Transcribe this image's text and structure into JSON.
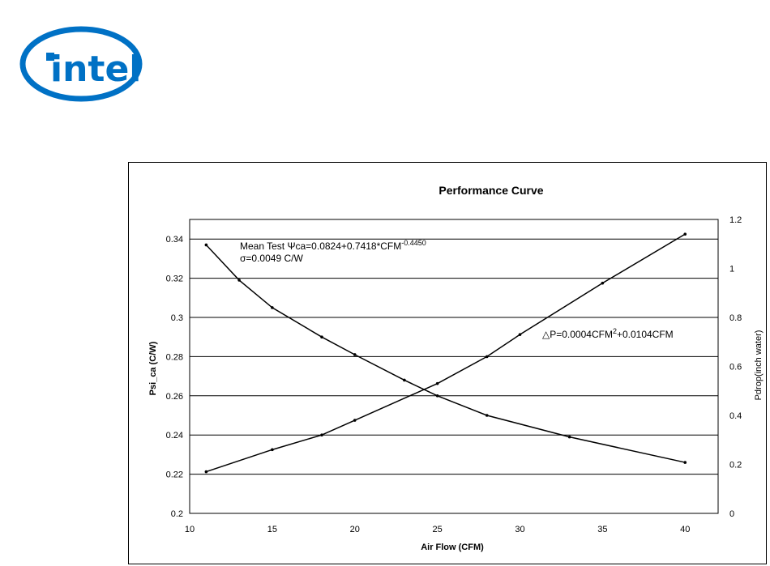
{
  "logo": {
    "text": "intel",
    "color": "#0071c5"
  },
  "chart_data": {
    "type": "line",
    "title": "Performance Curve",
    "xlabel": "Air Flow (CFM)",
    "ylabel": "Psi_ca (C/W)",
    "y2label": "Pdrop(inch water)",
    "xlim": [
      10,
      42
    ],
    "ylim": [
      0.2,
      0.35
    ],
    "y2lim": [
      0,
      1.2
    ],
    "xticks": [
      10,
      15,
      20,
      25,
      30,
      35,
      40
    ],
    "yticks": [
      0.2,
      0.22,
      0.24,
      0.26,
      0.28,
      0.3,
      0.32,
      0.34
    ],
    "ytick_labels": [
      "0.2",
      "0.22",
      "0.24",
      "0.26",
      "0.28",
      "0.3",
      "0.32",
      "0.34"
    ],
    "y2ticks": [
      0,
      0.2,
      0.4,
      0.6,
      0.8,
      1,
      1.2
    ],
    "y2tick_labels": [
      "0",
      "0.2",
      "0.4",
      "0.6",
      "0.8",
      "1",
      "1.2"
    ],
    "grid": "horizontal",
    "series": [
      {
        "axis": "left",
        "color": "#000000",
        "x": [
          11,
          13,
          15,
          18,
          20,
          23,
          25,
          28,
          33,
          40
        ],
        "y": [
          0.337,
          0.319,
          0.305,
          0.29,
          0.281,
          0.268,
          0.26,
          0.25,
          0.239,
          0.226
        ]
      },
      {
        "axis": "right",
        "color": "#000000",
        "x": [
          11,
          15,
          18,
          20,
          25,
          28,
          30,
          35,
          40
        ],
        "y": [
          0.17,
          0.26,
          0.32,
          0.38,
          0.53,
          0.64,
          0.73,
          0.94,
          1.14
        ]
      }
    ],
    "annotations": {
      "eq1_prefix": "Mean   Test   Ψca=0.0824+0.7418*CFM",
      "eq1_exp": "-0.4450",
      "eq2": "σ=0.0049 C/W",
      "eq3_prefix": "△P=0.0004CFM",
      "eq3_sup": "2",
      "eq3_suffix": "+0.0104CFM"
    }
  }
}
